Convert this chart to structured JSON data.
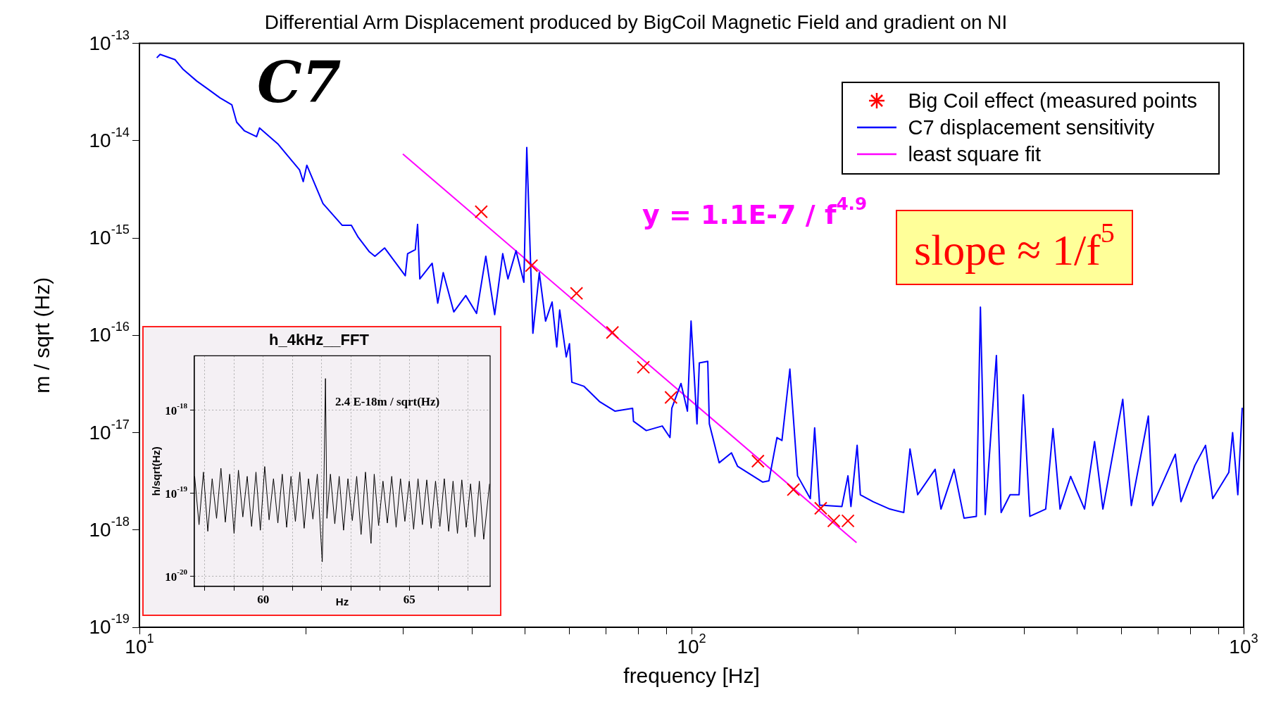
{
  "chart_data": [
    {
      "type": "line",
      "title": "Differential Arm Displacement produced by BigCoil Magnetic Field and gradient on NI",
      "xlabel": "frequency [Hz]",
      "ylabel": "m / sqrt (Hz)",
      "log": "xy",
      "xlim": [
        10,
        1000
      ],
      "ylim": [
        1e-19,
        1e-13
      ],
      "xticks": [
        {
          "value": 10,
          "label": "10$^{1}$"
        },
        {
          "value": 20,
          "label": null
        },
        {
          "value": 30,
          "label": null
        },
        {
          "value": 40,
          "label": null
        },
        {
          "value": 50,
          "label": null
        },
        {
          "value": 60,
          "label": null
        },
        {
          "value": 70,
          "label": null
        },
        {
          "value": 80,
          "label": null
        },
        {
          "value": 90,
          "label": null
        },
        {
          "value": 100,
          "label": "10$^{2}$"
        },
        {
          "value": 200,
          "label": null
        },
        {
          "value": 300,
          "label": null
        },
        {
          "value": 400,
          "label": null
        },
        {
          "value": 500,
          "label": null
        },
        {
          "value": 600,
          "label": null
        },
        {
          "value": 700,
          "label": null
        },
        {
          "value": 800,
          "label": null
        },
        {
          "value": 900,
          "label": null
        },
        {
          "value": 1000,
          "label": "10$^{3}$"
        }
      ],
      "yticks": [
        {
          "value": 1e-19,
          "label": "10$^{-19}$"
        },
        {
          "value": 1e-18,
          "label": "10$^{-18}$"
        },
        {
          "value": 1e-17,
          "label": "10$^{-17}$"
        },
        {
          "value": 1e-16,
          "label": "10$^{-16}$"
        },
        {
          "value": 1e-15,
          "label": "10$^{-15}$"
        },
        {
          "value": 1e-14,
          "label": "10$^{-14}$"
        },
        {
          "value": 1e-13,
          "label": "10$^{-13}$"
        }
      ],
      "legend": "top right",
      "series": [
        {
          "name": "Big Coil effect (measured points",
          "type": "scatter",
          "marker": "cross",
          "color": "#ff0000",
          "x": [
            41.6,
            51.3,
            61.9,
            71.9,
            81.8,
            91.8,
            131.9,
            152.9,
            171.4,
            181,
            192
          ],
          "values": [
            1.86e-15,
            5.2e-16,
            2.7e-16,
            1.07e-16,
            4.7e-17,
            2.3e-17,
            5.1e-18,
            2.6e-18,
            1.67e-18,
            1.24e-18,
            1.24e-18
          ]
        },
        {
          "name": "C7 displacement sensitivity",
          "type": "line",
          "color": "#0000ff",
          "x": [
            10.75,
            10.9,
            11.6,
            12.0,
            12.7,
            13.3,
            14.0,
            14.7,
            15.0,
            15.5,
            16.3,
            16.5,
            17.8,
            18.6,
            19.5,
            19.8,
            20.1,
            21.5,
            23.3,
            24.2,
            24.9,
            26.1,
            26.7,
            27.8,
            30.3,
            30.6,
            31.6,
            31.9,
            32.2,
            33.9,
            34.7,
            35.5,
            37.1,
            39.0,
            40.8,
            42.4,
            44.0,
            45.5,
            46.5,
            48.1,
            49.7,
            50.3,
            51.6,
            53.0,
            54.4,
            55.9,
            57.0,
            57.7,
            59.3,
            60.1,
            60.7,
            63.8,
            68.1,
            72.7,
            78.2,
            78.5,
            82.8,
            88.5,
            91.4,
            92.1,
            95.7,
            98.3,
            99.8,
            102.3,
            103.3,
            107.0,
            107.7,
            112.2,
            118.1,
            121.2,
            134.6,
            138.1,
            142.8,
            145.8,
            150.7,
            155.6,
            164.1,
            167.1,
            170.6,
            187.2,
            192,
            194.4,
            199.5,
            202.2,
            213.2,
            228.6,
            242.3,
            248.7,
            256.8,
            276.2,
            283,
            299,
            311.6,
            328,
            333.6,
            340.4,
            356.6,
            363.7,
            377.5,
            392,
            399,
            410,
            438,
            451.5,
            465,
            486,
            515,
            537,
            556,
            604,
            626,
            672,
            684,
            752,
            770,
            816,
            853,
            879,
            940,
            955,
            976,
            994
          ],
          "values": [
            7.1e-14,
            7.7e-14,
            6.8e-14,
            5.4e-14,
            4.1e-14,
            3.4e-14,
            2.75e-14,
            2.34e-14,
            1.55e-14,
            1.26e-14,
            1.1e-14,
            1.35e-14,
            9.3e-15,
            6.9e-15,
            5e-15,
            3.8e-15,
            5.6e-15,
            2.26e-15,
            1.35e-15,
            1.35e-15,
            1.02e-15,
            7.2e-16,
            6.5e-16,
            7.9e-16,
            4.1e-16,
            6.9e-16,
            7.6e-16,
            1.38e-15,
            3.8e-16,
            5.5e-16,
            2.14e-16,
            4.4e-16,
            1.74e-16,
            2.56e-16,
            1.68e-16,
            6.5e-16,
            1.63e-16,
            6.9e-16,
            3.8e-16,
            7.4e-16,
            3.5e-16,
            8.5e-15,
            1.05e-16,
            4.4e-16,
            1.4e-16,
            2.2e-16,
            7.6e-17,
            1.82e-16,
            6e-17,
            8.2e-17,
            3.3e-17,
            3e-17,
            2.09e-17,
            1.66e-17,
            1.78e-17,
            1.31e-17,
            1.05e-17,
            1.17e-17,
            8.9e-18,
            1.78e-17,
            3.2e-17,
            1.66e-17,
            1.4e-16,
            1.23e-17,
            5.2e-17,
            5.4e-17,
            1.23e-17,
            4.9e-18,
            6.2e-18,
            4.5e-18,
            3.1e-18,
            3.2e-18,
            8.9e-18,
            8.3e-18,
            4.5e-17,
            3.6e-18,
            2.1e-18,
            1.12e-17,
            1.8e-18,
            1.74e-18,
            3.6e-18,
            1.74e-18,
            7.4e-18,
            2.3e-18,
            1.95e-18,
            1.64e-18,
            1.51e-18,
            6.8e-18,
            2.3e-18,
            4.2e-18,
            1.64e-18,
            4.2e-18,
            1.32e-18,
            1.38e-18,
            1.95e-16,
            1.44e-18,
            6.2e-17,
            1.51e-18,
            2.3e-18,
            2.3e-18,
            2.45e-17,
            1.38e-18,
            1.64e-18,
            1.1e-17,
            1.64e-18,
            3.55e-18,
            1.64e-18,
            8.1e-18,
            1.64e-18,
            2.2e-17,
            1.78e-18,
            1.48e-17,
            1.78e-18,
            6e-18,
            1.95e-18,
            4.6e-18,
            7.4e-18,
            2.1e-18,
            3.9e-18,
            1e-17,
            2.3e-18,
            1.8e-17
          ]
        },
        {
          "name": "least square fit",
          "type": "line",
          "color": "#ff00ff",
          "x": [
            30,
            199
          ],
          "values": [
            7.3e-15,
            7.4e-19
          ]
        }
      ],
      "annotations": [
        "C7",
        "y = 1.1E-7 / f$^{4.9}$",
        "slope ≈ 1/f$^{5}$"
      ]
    },
    {
      "type": "line",
      "title": "h_4kHz__FFT",
      "xlabel": "Hz",
      "ylabel": "h/sqrt(Hz)",
      "log": "y",
      "grid": true,
      "line_style": "solid",
      "xlim": [
        57.64,
        67.77
      ],
      "ylim": [
        7.6e-21,
        4.5e-18
      ],
      "xticks": [
        {
          "value": 58,
          "label": null
        },
        {
          "value": 59,
          "label": null
        },
        60,
        {
          "value": 61,
          "label": null
        },
        {
          "value": 62,
          "label": null
        },
        {
          "value": 63,
          "label": null
        },
        {
          "value": 64,
          "label": null
        },
        65,
        {
          "value": 66,
          "label": null
        },
        {
          "value": 67,
          "label": null
        }
      ],
      "yticks": [
        {
          "value": 1e-20,
          "label": "10$^{-20}$"
        },
        {
          "value": 1e-19,
          "label": "10$^{-19}$"
        },
        {
          "value": 1e-18,
          "label": "10$^{-18}$"
        }
      ],
      "series": [
        {
          "color": "#000000",
          "x": [
            57.65,
            57.8,
            57.95,
            58.1,
            58.25,
            58.4,
            58.55,
            58.7,
            58.85,
            59.0,
            59.15,
            59.3,
            59.45,
            59.6,
            59.75,
            59.9,
            60.05,
            60.2,
            60.35,
            60.5,
            60.65,
            60.8,
            60.95,
            61.1,
            61.25,
            61.4,
            61.55,
            61.7,
            61.85,
            62.02,
            62.08,
            62.13,
            62.18,
            62.3,
            62.45,
            62.6,
            62.75,
            62.9,
            63.05,
            63.2,
            63.35,
            63.5,
            63.69,
            63.8,
            63.95,
            64.1,
            64.25,
            64.4,
            64.55,
            64.7,
            64.85,
            65.0,
            65.15,
            65.3,
            65.45,
            65.6,
            65.75,
            65.9,
            66.05,
            66.2,
            66.35,
            66.5,
            66.65,
            66.8,
            66.95,
            67.1,
            67.25,
            67.4,
            67.55,
            67.75
          ],
          "values": [
            1.6e-19,
            4.2e-20,
            1.8e-19,
            3.5e-20,
            1.5e-19,
            5e-20,
            2e-19,
            4.5e-20,
            1.7e-19,
            3.3e-20,
            1.9e-19,
            5.2e-20,
            1.6e-19,
            4e-20,
            1.8e-19,
            3.6e-20,
            2.1e-19,
            4.8e-20,
            1.5e-19,
            4.4e-20,
            1.7e-19,
            3.9e-20,
            1.6e-19,
            4.6e-20,
            1.8e-19,
            3.8e-20,
            1.5e-19,
            4.9e-20,
            1.7e-19,
            1.5e-20,
            1.6e-19,
            2.4e-18,
            5e-20,
            1.7e-19,
            4.3e-20,
            1.6e-19,
            3.6e-20,
            1.5e-19,
            4.7e-20,
            1.6e-19,
            3.2e-20,
            1.8e-19,
            2.5e-20,
            1.7e-19,
            4.1e-20,
            1.4e-19,
            4.4e-20,
            1.6e-19,
            3.9e-20,
            1.5e-19,
            4.6e-20,
            1.4e-19,
            3.7e-20,
            1.5e-19,
            4.2e-20,
            1.45e-19,
            3.8e-20,
            1.4e-19,
            4e-20,
            1.5e-19,
            3.5e-20,
            1.4e-19,
            3.3e-20,
            1.45e-19,
            3.9e-20,
            1.3e-19,
            3e-20,
            1.4e-19,
            2.8e-20,
            1.3e-19
          ]
        }
      ],
      "annotations": [
        "2.4 E-18m / sqrt(Hz)"
      ]
    }
  ]
}
